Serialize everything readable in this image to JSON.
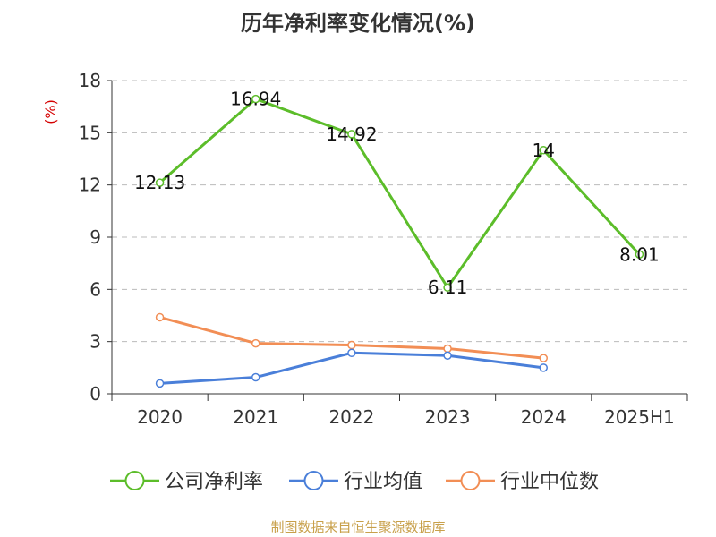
{
  "title": "历年净利率变化情况(%)",
  "source": "制图数据来自恒生聚源数据库",
  "chart_data": {
    "type": "line",
    "title": "历年净利率变化情况(%)",
    "ylabel": "(%)",
    "categories": [
      "2020",
      "2021",
      "2022",
      "2023",
      "2024",
      "2025H1"
    ],
    "ylim": [
      0,
      18
    ],
    "yticks": [
      0,
      3,
      6,
      9,
      12,
      15,
      18
    ],
    "grid": true,
    "legend_position": "bottom",
    "series": [
      {
        "name": "公司净利率",
        "color": "#5cbd2a",
        "values": [
          12.13,
          16.94,
          14.92,
          6.11,
          14,
          8.01
        ],
        "labels": [
          "12.13",
          "16.94",
          "14.92",
          "6.11",
          "14",
          "8.01"
        ]
      },
      {
        "name": "行业均值",
        "color": "#4a7fd9",
        "values": [
          0.6,
          0.95,
          2.35,
          2.2,
          1.5,
          null
        ]
      },
      {
        "name": "行业中位数",
        "color": "#f28e55",
        "values": [
          4.4,
          2.9,
          2.8,
          2.6,
          2.05,
          null
        ]
      }
    ]
  }
}
